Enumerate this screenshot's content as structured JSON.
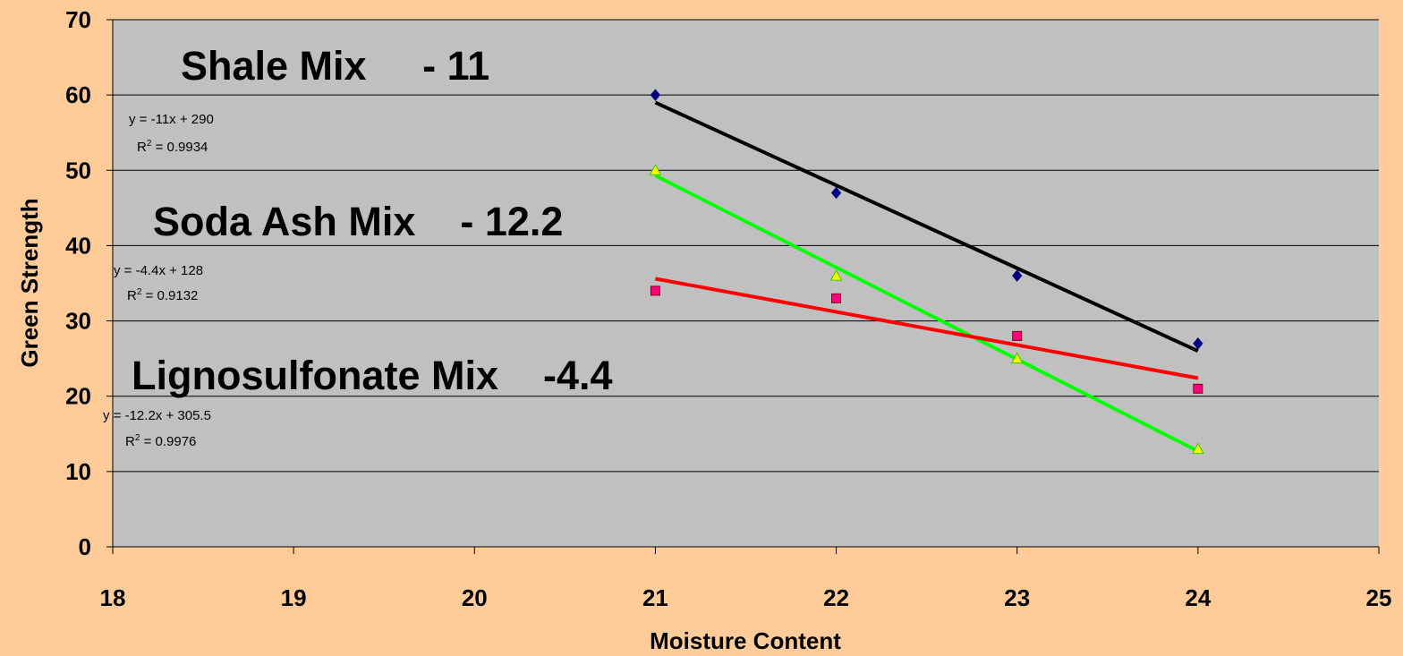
{
  "chart_data": {
    "type": "scatter",
    "xlabel": "Moisture Content",
    "ylabel": "Green Strength",
    "xlim": [
      18,
      25
    ],
    "ylim": [
      0,
      70
    ],
    "x_ticks": [
      "18",
      "19",
      "20",
      "21",
      "22",
      "23",
      "24",
      "25"
    ],
    "y_ticks": [
      "0",
      "10",
      "20",
      "30",
      "40",
      "50",
      "60",
      "70"
    ],
    "grid": true,
    "legend": "none",
    "plot_area_color": "#C0C0C0",
    "background_color": "#FFCC99",
    "series": [
      {
        "marker": "diamond",
        "marker_color": "#000080",
        "trendline_color": "#000000",
        "x": [
          21,
          22,
          23,
          24
        ],
        "y": [
          60,
          47,
          36,
          27
        ],
        "trendline": {
          "slope": -11,
          "intercept": 290
        }
      },
      {
        "marker": "triangle",
        "marker_color": "#FFFF00",
        "trendline_color": "#00FF00",
        "x": [
          21,
          22,
          23,
          24
        ],
        "y": [
          50,
          36,
          25,
          13
        ],
        "trendline": {
          "slope": -12.2,
          "intercept": 305.5
        }
      },
      {
        "marker": "square",
        "marker_color": "#FF0080",
        "trendline_color": "#FF0000",
        "x": [
          21,
          22,
          23,
          24
        ],
        "y": [
          34,
          33,
          28,
          21
        ],
        "trendline": {
          "slope": -4.4,
          "intercept": 128
        }
      }
    ],
    "annotations": [
      {
        "text": "Shale Mix     - 11"
      },
      {
        "text": "Soda Ash Mix    - 12.2"
      },
      {
        "text": "Lignosulfonate Mix    -4.4"
      }
    ],
    "equations": [
      {
        "eq": "y = -11x + 290",
        "r2_prefix": "R",
        "r2_exp": "2",
        "r2_value": " = 0.9934"
      },
      {
        "eq": "y = -4.4x + 128",
        "r2_prefix": "R",
        "r2_exp": "2",
        "r2_value": " = 0.9132"
      },
      {
        "eq": "y = -12.2x + 305.5",
        "r2_prefix": "R",
        "r2_exp": "2",
        "r2_value": " = 0.9976"
      }
    ]
  }
}
